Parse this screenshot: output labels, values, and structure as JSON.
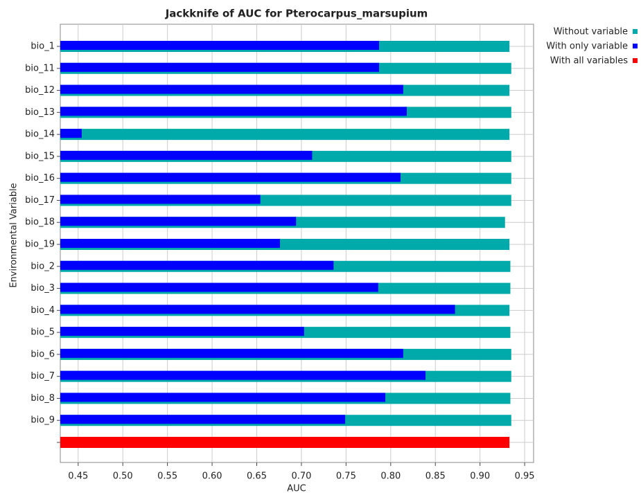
{
  "chart_data": {
    "type": "bar",
    "orientation": "horizontal",
    "title": "Jackknife of AUC for Pterocarpus_marsupium",
    "xlabel": "AUC",
    "ylabel": "Environmental Variable",
    "categories": [
      "bio_1",
      "bio_11",
      "bio_12",
      "bio_13",
      "bio_14",
      "bio_15",
      "bio_16",
      "bio_17",
      "bio_18",
      "bio_19",
      "bio_2",
      "bio_3",
      "bio_4",
      "bio_5",
      "bio_6",
      "bio_7",
      "bio_8",
      "bio_9",
      null
    ],
    "series": [
      {
        "name": "Without variable",
        "color": "#00aaaa",
        "values": [
          0.933,
          0.935,
          0.933,
          0.935,
          0.933,
          0.935,
          0.935,
          0.935,
          0.928,
          0.933,
          0.934,
          0.934,
          0.933,
          0.934,
          0.935,
          0.935,
          0.934,
          0.935,
          null
        ]
      },
      {
        "name": "With only variable",
        "color": "#0000ff",
        "values": [
          0.787,
          0.787,
          0.814,
          0.818,
          0.454,
          0.712,
          0.811,
          0.654,
          0.694,
          0.676,
          0.736,
          0.786,
          0.872,
          0.703,
          0.814,
          0.839,
          0.794,
          0.749,
          null
        ]
      },
      {
        "name": "With all variables",
        "color": "#ff0000",
        "values": [
          null,
          null,
          null,
          null,
          null,
          null,
          null,
          null,
          null,
          null,
          null,
          null,
          null,
          null,
          null,
          null,
          null,
          null,
          0.933
        ]
      }
    ],
    "xlim": [
      0.43,
      0.96
    ],
    "xticks": [
      0.45,
      {
        "value": 0.5,
        "label": "0.50"
      },
      0.55,
      {
        "value": 0.6,
        "label": "0.60"
      },
      0.65,
      {
        "value": 0.7,
        "label": "0.70"
      },
      0.75,
      {
        "value": 0.8,
        "label": "0.80"
      },
      0.85,
      {
        "value": 0.9,
        "label": "0.90"
      },
      0.95
    ],
    "grid": true,
    "legend": "right"
  }
}
